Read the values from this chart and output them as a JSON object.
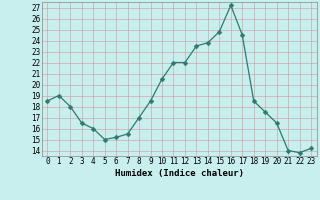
{
  "x": [
    0,
    1,
    2,
    3,
    4,
    5,
    6,
    7,
    8,
    9,
    10,
    11,
    12,
    13,
    14,
    15,
    16,
    17,
    18,
    19,
    20,
    21,
    22,
    23
  ],
  "y": [
    18.5,
    19.0,
    18.0,
    16.5,
    16.0,
    15.0,
    15.2,
    15.5,
    17.0,
    18.5,
    20.5,
    22.0,
    22.0,
    23.5,
    23.8,
    24.8,
    27.2,
    24.5,
    18.5,
    17.5,
    16.5,
    14.0,
    13.8,
    14.2
  ],
  "line_color": "#2d7a6e",
  "marker": "D",
  "marker_size": 2.5,
  "bg_color": "#c8eeee",
  "grid_color": "#b0dddd",
  "grid_major_color": "#cc9999",
  "xlabel": "Humidex (Indice chaleur)",
  "xlim": [
    -0.5,
    23.5
  ],
  "ylim": [
    13.5,
    27.5
  ],
  "yticks": [
    14,
    15,
    16,
    17,
    18,
    19,
    20,
    21,
    22,
    23,
    24,
    25,
    26,
    27
  ],
  "xticks": [
    0,
    1,
    2,
    3,
    4,
    5,
    6,
    7,
    8,
    9,
    10,
    11,
    12,
    13,
    14,
    15,
    16,
    17,
    18,
    19,
    20,
    21,
    22,
    23
  ],
  "tick_fontsize": 5.5,
  "label_fontsize": 6.5
}
